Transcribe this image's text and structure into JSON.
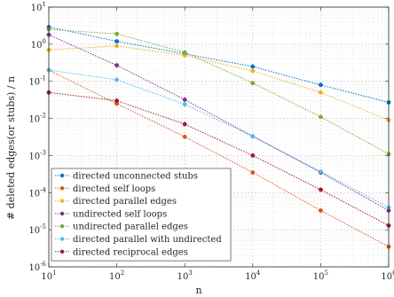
{
  "chart_data": {
    "type": "line",
    "xlabel": "n",
    "ylabel": "# deleted edges(or stubs) / n",
    "x_scale": "log",
    "y_scale": "log",
    "xlim": [
      10,
      1000000
    ],
    "ylim": [
      1e-06,
      10
    ],
    "x_ticks": [
      10,
      100,
      1000,
      10000,
      100000,
      1000000
    ],
    "y_ticks": [
      1e-06,
      1e-05,
      0.0001,
      0.001,
      0.01,
      0.1,
      1,
      10
    ],
    "grid": true,
    "minor_grid": true,
    "legend_position": "bottom-left",
    "x": [
      10,
      100,
      1000,
      10000,
      100000,
      1000000
    ],
    "series": [
      {
        "name": "directed unconnected stubs",
        "color": "#0072BD",
        "values": [
          2.9,
          1.2,
          0.55,
          0.25,
          0.08,
          0.027
        ]
      },
      {
        "name": "directed self loops",
        "color": "#D95319",
        "values": [
          0.2,
          0.025,
          0.0032,
          0.00035,
          3.3e-05,
          3.5e-06
        ]
      },
      {
        "name": "directed parallel edges",
        "color": "#EDB120",
        "values": [
          0.7,
          0.9,
          0.5,
          0.19,
          0.05,
          0.009
        ]
      },
      {
        "name": "undirected self loops",
        "color": "#7E2F8E",
        "values": [
          1.8,
          0.27,
          0.032,
          0.0033,
          0.00035,
          3.3e-05
        ]
      },
      {
        "name": "undirected parallel edges",
        "color": "#77AC30",
        "values": [
          2.5,
          1.9,
          0.6,
          0.09,
          0.011,
          0.0011
        ]
      },
      {
        "name": "directed parallel with undirected",
        "color": "#4DBEEE",
        "values": [
          0.2,
          0.11,
          0.024,
          0.0033,
          0.00037,
          4e-05
        ]
      },
      {
        "name": "directed reciprocal edges",
        "color": "#A2142F",
        "values": [
          0.05,
          0.03,
          0.007,
          0.001,
          0.00012,
          1.3e-05
        ]
      }
    ]
  }
}
